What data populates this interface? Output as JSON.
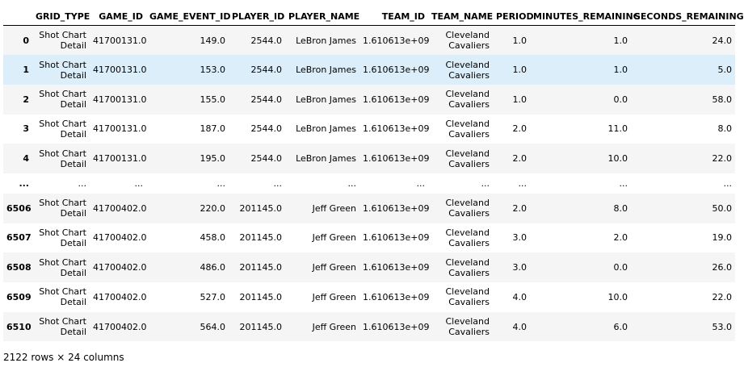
{
  "columns": [
    "",
    "GRID_TYPE",
    "GAME_ID",
    "GAME_EVENT_ID",
    "PLAYER_ID",
    "PLAYER_NAME",
    "TEAM_ID",
    "TEAM_NAME",
    "PERIOD",
    "MINUTES_REMAINING",
    "SECONDS_REMAINING"
  ],
  "rows": [
    {
      "index": "0",
      "cells": [
        "Shot Chart Detail",
        "41700131.0",
        "149.0",
        "2544.0",
        "LeBron James",
        "1.610613e+09",
        "Cleveland Cavaliers",
        "1.0",
        "1.0",
        "24.0"
      ]
    },
    {
      "index": "1",
      "cells": [
        "Shot Chart Detail",
        "41700131.0",
        "153.0",
        "2544.0",
        "LeBron James",
        "1.610613e+09",
        "Cleveland Cavaliers",
        "1.0",
        "1.0",
        "5.0"
      ]
    },
    {
      "index": "2",
      "cells": [
        "Shot Chart Detail",
        "41700131.0",
        "155.0",
        "2544.0",
        "LeBron James",
        "1.610613e+09",
        "Cleveland Cavaliers",
        "1.0",
        "0.0",
        "58.0"
      ]
    },
    {
      "index": "3",
      "cells": [
        "Shot Chart Detail",
        "41700131.0",
        "187.0",
        "2544.0",
        "LeBron James",
        "1.610613e+09",
        "Cleveland Cavaliers",
        "2.0",
        "11.0",
        "8.0"
      ]
    },
    {
      "index": "4",
      "cells": [
        "Shot Chart Detail",
        "41700131.0",
        "195.0",
        "2544.0",
        "LeBron James",
        "1.610613e+09",
        "Cleveland Cavaliers",
        "2.0",
        "10.0",
        "22.0"
      ]
    },
    {
      "index": "...",
      "cells": [
        "...",
        "...",
        "...",
        "...",
        "...",
        "...",
        "...",
        "...",
        "...",
        "..."
      ]
    },
    {
      "index": "6506",
      "cells": [
        "Shot Chart Detail",
        "41700402.0",
        "220.0",
        "201145.0",
        "Jeff Green",
        "1.610613e+09",
        "Cleveland Cavaliers",
        "2.0",
        "8.0",
        "50.0"
      ]
    },
    {
      "index": "6507",
      "cells": [
        "Shot Chart Detail",
        "41700402.0",
        "458.0",
        "201145.0",
        "Jeff Green",
        "1.610613e+09",
        "Cleveland Cavaliers",
        "3.0",
        "2.0",
        "19.0"
      ]
    },
    {
      "index": "6508",
      "cells": [
        "Shot Chart Detail",
        "41700402.0",
        "486.0",
        "201145.0",
        "Jeff Green",
        "1.610613e+09",
        "Cleveland Cavaliers",
        "3.0",
        "0.0",
        "26.0"
      ]
    },
    {
      "index": "6509",
      "cells": [
        "Shot Chart Detail",
        "41700402.0",
        "527.0",
        "201145.0",
        "Jeff Green",
        "1.610613e+09",
        "Cleveland Cavaliers",
        "4.0",
        "10.0",
        "22.0"
      ]
    },
    {
      "index": "6510",
      "cells": [
        "Shot Chart Detail",
        "41700402.0",
        "564.0",
        "201145.0",
        "Jeff Green",
        "1.610613e+09",
        "Cleveland Cavaliers",
        "4.0",
        "6.0",
        "53.0"
      ]
    }
  ],
  "hovered_row": "1",
  "shape_text": "2122 rows × 24 columns",
  "colors": {
    "row_stripe": "#f5f5f5",
    "row_hover": "#dbeefa",
    "header_rule": "#000000"
  }
}
